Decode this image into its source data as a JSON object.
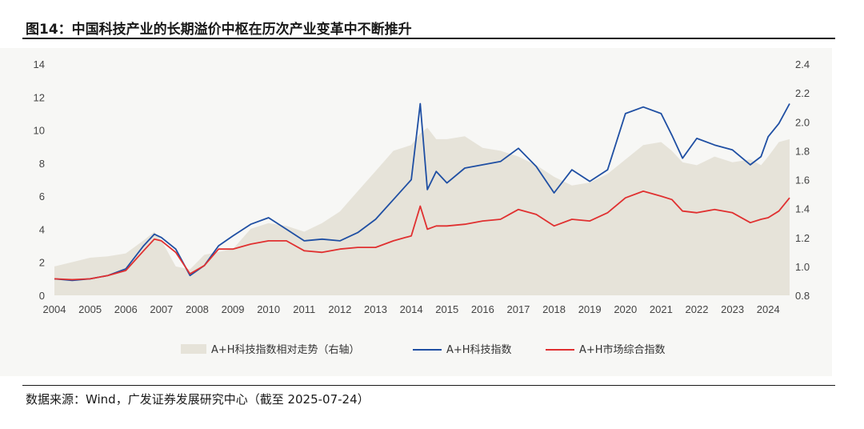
{
  "figure": {
    "title": "图14：中国科技产业的长期溢价中枢在历次产业变革中不断推升",
    "source": "数据来源：Wind，广发证券发展研究中心（截至 2025-07-24）"
  },
  "colors": {
    "relative": "#e6e3d9",
    "tech": "#1f4fa3",
    "market": "#e03030"
  },
  "chart_data": {
    "type": "line",
    "x": [
      2004.0,
      2004.5,
      2005.0,
      2005.5,
      2006.0,
      2006.5,
      2006.8,
      2007.0,
      2007.4,
      2007.8,
      2008.2,
      2008.6,
      2009.0,
      2009.5,
      2010.0,
      2010.5,
      2011.0,
      2011.5,
      2012.0,
      2012.5,
      2013.0,
      2013.5,
      2014.0,
      2014.25,
      2014.45,
      2014.7,
      2015.0,
      2015.5,
      2016.0,
      2016.5,
      2017.0,
      2017.5,
      2018.0,
      2018.5,
      2019.0,
      2019.5,
      2020.0,
      2020.5,
      2021.0,
      2021.3,
      2021.6,
      2022.0,
      2022.5,
      2023.0,
      2023.5,
      2023.8,
      2024.0,
      2024.3,
      2024.6
    ],
    "series": [
      {
        "name": "A+H科技指数相对走势（右轴）",
        "kind": "area",
        "axis": "right",
        "values": [
          1.0,
          1.03,
          1.06,
          1.07,
          1.09,
          1.18,
          1.24,
          1.18,
          1.0,
          0.98,
          1.08,
          1.1,
          1.12,
          1.26,
          1.3,
          1.28,
          1.24,
          1.3,
          1.38,
          1.52,
          1.66,
          1.8,
          1.84,
          1.92,
          1.96,
          1.88,
          1.88,
          1.9,
          1.82,
          1.8,
          1.76,
          1.7,
          1.62,
          1.56,
          1.58,
          1.64,
          1.74,
          1.84,
          1.86,
          1.8,
          1.72,
          1.7,
          1.76,
          1.72,
          1.74,
          1.7,
          1.76,
          1.86,
          1.88
        ]
      },
      {
        "name": "A+H科技指数",
        "kind": "line",
        "axis": "left",
        "values": [
          1.0,
          0.9,
          1.0,
          1.2,
          1.6,
          3.0,
          3.7,
          3.5,
          2.8,
          1.2,
          1.8,
          3.0,
          3.6,
          4.3,
          4.7,
          4.0,
          3.3,
          3.4,
          3.3,
          3.8,
          4.6,
          5.8,
          7.0,
          11.6,
          6.4,
          7.5,
          6.8,
          7.7,
          7.9,
          8.1,
          8.9,
          7.8,
          6.2,
          7.6,
          6.9,
          7.6,
          11.0,
          11.4,
          11.0,
          9.7,
          8.3,
          9.5,
          9.1,
          8.8,
          7.9,
          8.4,
          9.6,
          10.4,
          11.6
        ]
      },
      {
        "name": "A+H市场综合指数",
        "kind": "line",
        "axis": "left",
        "values": [
          1.0,
          0.95,
          1.0,
          1.2,
          1.5,
          2.7,
          3.4,
          3.3,
          2.6,
          1.3,
          1.8,
          2.8,
          2.8,
          3.1,
          3.3,
          3.3,
          2.7,
          2.6,
          2.8,
          2.9,
          2.9,
          3.3,
          3.6,
          5.4,
          4.0,
          4.2,
          4.2,
          4.3,
          4.5,
          4.6,
          5.2,
          4.9,
          4.2,
          4.6,
          4.5,
          5.0,
          5.9,
          6.3,
          6.0,
          5.8,
          5.1,
          5.0,
          5.2,
          5.0,
          4.4,
          4.6,
          4.7,
          5.1,
          5.9
        ]
      }
    ],
    "y_left": {
      "ylim": [
        0,
        14
      ],
      "ticks": [
        0,
        2,
        4,
        6,
        8,
        10,
        12,
        14
      ]
    },
    "y_right": {
      "ylim": [
        0.8,
        2.4
      ],
      "ticks": [
        "0.8",
        "1.0",
        "1.2",
        "1.4",
        "1.6",
        "1.8",
        "2.0",
        "2.2",
        "2.4"
      ]
    },
    "xlim": [
      2004,
      2024.6
    ],
    "x_ticks": [
      "2004",
      "2005",
      "2006",
      "2007",
      "2008",
      "2009",
      "2010",
      "2011",
      "2012",
      "2013",
      "2014",
      "2015",
      "2016",
      "2017",
      "2018",
      "2019",
      "2020",
      "2021",
      "2022",
      "2023",
      "2024"
    ],
    "legend": {
      "placement": "bottom",
      "items": [
        "A+H科技指数相对走势（右轴）",
        "A+H科技指数",
        "A+H市场综合指数"
      ]
    },
    "grid": false
  }
}
